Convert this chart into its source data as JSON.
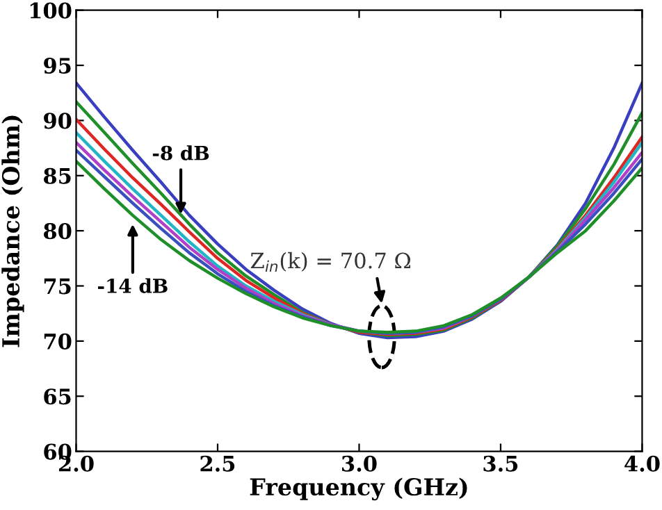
{
  "chart_data": {
    "type": "line",
    "xlabel": "Frequency (GHz)",
    "ylabel": "Impedance (Ohm)",
    "x": [
      2.0,
      2.1,
      2.2,
      2.3,
      2.4,
      2.5,
      2.6,
      2.7,
      2.8,
      2.9,
      3.0,
      3.1,
      3.2,
      3.3,
      3.4,
      3.5,
      3.6,
      3.7,
      3.8,
      3.9,
      4.0
    ],
    "series": [
      {
        "color": "#3a3fc0",
        "values": [
          93.4,
          90.3,
          87.3,
          84.4,
          81.4,
          78.8,
          76.5,
          74.6,
          72.9,
          71.6,
          70.7,
          70.3,
          70.4,
          70.9,
          72.0,
          73.6,
          75.8,
          78.7,
          82.5,
          87.5,
          93.4
        ]
      },
      {
        "color": "#1f8f2a",
        "values": [
          91.7,
          88.9,
          86.1,
          83.4,
          80.6,
          78.0,
          75.9,
          74.2,
          72.6,
          71.5,
          70.8,
          70.5,
          70.6,
          71.0,
          72.1,
          73.7,
          75.8,
          78.6,
          82.0,
          86.0,
          90.7
        ]
      },
      {
        "color": "#e02525",
        "values": [
          90.1,
          87.4,
          84.8,
          82.4,
          79.9,
          77.5,
          75.5,
          73.9,
          72.5,
          71.5,
          70.8,
          70.6,
          70.7,
          71.1,
          72.2,
          73.7,
          75.8,
          78.4,
          81.4,
          84.8,
          88.5
        ]
      },
      {
        "color": "#22b5c5",
        "values": [
          88.9,
          86.3,
          83.8,
          81.4,
          79.0,
          76.8,
          75.0,
          73.6,
          72.4,
          71.5,
          70.9,
          70.7,
          70.8,
          71.2,
          72.3,
          73.8,
          75.8,
          78.3,
          81.2,
          84.4,
          88.0
        ]
      },
      {
        "color": "#b040c8",
        "values": [
          88.0,
          85.5,
          83.1,
          80.8,
          78.5,
          76.5,
          74.8,
          73.4,
          72.3,
          71.5,
          70.9,
          70.7,
          70.8,
          71.2,
          72.3,
          73.8,
          75.8,
          78.2,
          81.0,
          83.9,
          87.1
        ]
      },
      {
        "color": "#3a50c0",
        "values": [
          87.3,
          84.9,
          82.5,
          80.2,
          78.0,
          76.1,
          74.5,
          73.2,
          72.2,
          71.4,
          70.9,
          70.7,
          70.8,
          71.3,
          72.3,
          73.8,
          75.8,
          78.1,
          80.6,
          83.4,
          86.5
        ]
      },
      {
        "color": "#1f8f2a",
        "values": [
          86.3,
          83.8,
          81.4,
          79.2,
          77.3,
          75.7,
          74.3,
          73.1,
          72.1,
          71.4,
          70.9,
          70.8,
          70.9,
          71.4,
          72.4,
          73.9,
          75.8,
          78.0,
          80.0,
          82.7,
          85.7
        ]
      }
    ],
    "xlim": [
      2.0,
      4.0
    ],
    "ylim": [
      60,
      100
    ],
    "xticks": [
      {
        "value": 2.0,
        "label": "2.0"
      },
      2.5,
      {
        "value": 3.0,
        "label": "3.0"
      },
      3.5,
      {
        "value": 4.0,
        "label": "4.0"
      }
    ],
    "yticks": [
      60,
      65,
      70,
      75,
      80,
      85,
      90,
      95,
      100
    ],
    "annotations": [
      {
        "text": "-8 dB",
        "x": 2.37,
        "y": 81.5
      },
      {
        "text": "-14 dB",
        "x": 2.2,
        "y": 80.6
      },
      "Z$_{in}$(k) = 70.7 Ω"
    ],
    "grid": false,
    "legend": false,
    "line_style": "solid",
    "marker": "none"
  }
}
